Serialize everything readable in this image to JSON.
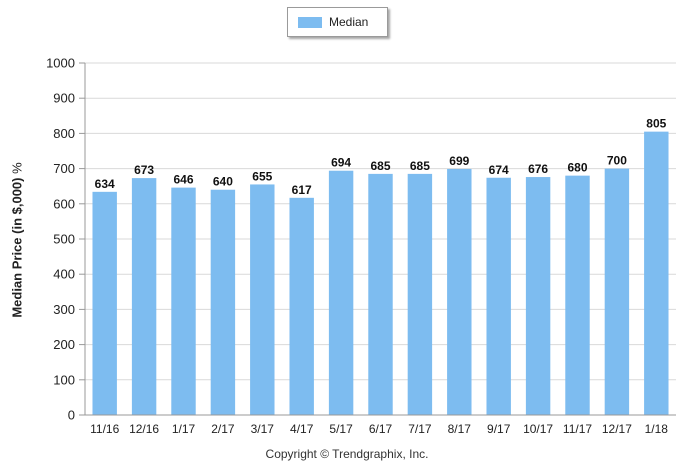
{
  "chart_data": {
    "type": "bar",
    "categories": [
      "11/16",
      "12/16",
      "1/17",
      "2/17",
      "3/17",
      "4/17",
      "5/17",
      "6/17",
      "7/17",
      "8/17",
      "9/17",
      "10/17",
      "11/17",
      "12/17",
      "1/18"
    ],
    "series": [
      {
        "name": "Median",
        "values": [
          634,
          673,
          646,
          640,
          655,
          617,
          694,
          685,
          685,
          699,
          674,
          676,
          680,
          700,
          805
        ]
      }
    ],
    "ylabel": "Median Price (in $,000)",
    "ylabel_suffix": "%",
    "xlabel": "",
    "ylim": [
      0,
      1000
    ],
    "yticks": [
      0,
      100,
      200,
      300,
      400,
      500,
      600,
      700,
      800,
      900,
      1000
    ],
    "grid": true,
    "legend_position": "top-center",
    "bar_color": "#7dbcf0"
  },
  "footer": {
    "copyright": "Copyright © Trendgraphix, Inc."
  }
}
